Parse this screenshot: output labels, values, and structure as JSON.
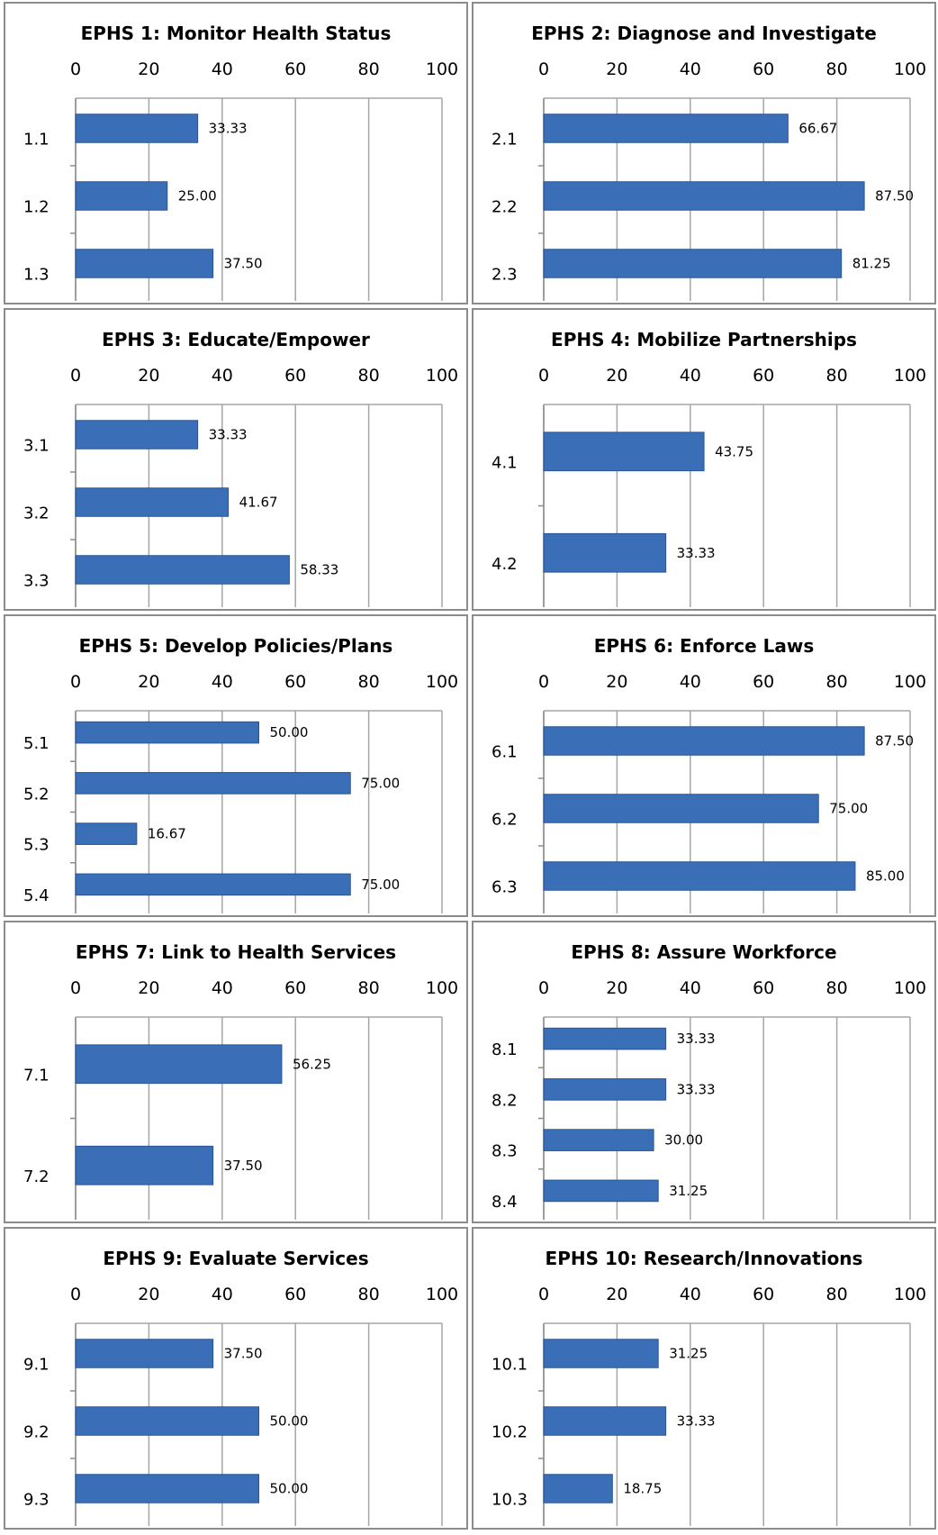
{
  "chart_data": [
    {
      "type": "bar",
      "title": "EPHS 1: Monitor Health Status",
      "categories": [
        "1.1",
        "1.2",
        "1.3"
      ],
      "values": [
        33.33,
        25.0,
        37.5
      ],
      "labels": [
        "33.33",
        "25.00",
        "37.50"
      ],
      "xlim": [
        0,
        100
      ],
      "ticks": [
        "0",
        "20",
        "40",
        "60",
        "80",
        "100"
      ],
      "grid": true,
      "bar_color": "#3a6fb8"
    },
    {
      "type": "bar",
      "title": "EPHS 2: Diagnose and Investigate",
      "categories": [
        "2.1",
        "2.2",
        "2.3"
      ],
      "values": [
        66.67,
        87.5,
        81.25
      ],
      "labels": [
        "66.67",
        "87.50",
        "81.25"
      ],
      "xlim": [
        0,
        100
      ],
      "ticks": [
        "0",
        "20",
        "40",
        "60",
        "80",
        "100"
      ],
      "grid": true,
      "bar_color": "#3a6fb8"
    },
    {
      "type": "bar",
      "title": "EPHS 3: Educate/Empower",
      "categories": [
        "3.1",
        "3.2",
        "3.3"
      ],
      "values": [
        33.33,
        41.67,
        58.33
      ],
      "labels": [
        "33.33",
        "41.67",
        "58.33"
      ],
      "xlim": [
        0,
        100
      ],
      "ticks": [
        "0",
        "20",
        "40",
        "60",
        "80",
        "100"
      ],
      "grid": true,
      "bar_color": "#3a6fb8"
    },
    {
      "type": "bar",
      "title": "EPHS 4: Mobilize Partnerships",
      "categories": [
        "4.1",
        "4.2"
      ],
      "values": [
        43.75,
        33.33
      ],
      "labels": [
        "43.75",
        "33.33"
      ],
      "xlim": [
        0,
        100
      ],
      "ticks": [
        "0",
        "20",
        "40",
        "60",
        "80",
        "100"
      ],
      "grid": true,
      "bar_color": "#3a6fb8"
    },
    {
      "type": "bar",
      "title": "EPHS 5: Develop Policies/Plans",
      "categories": [
        "5.1",
        "5.2",
        "5.3",
        "5.4"
      ],
      "values": [
        50.0,
        75.0,
        16.67,
        75.0
      ],
      "labels": [
        "50.00",
        "75.00",
        "16.67",
        "75.00"
      ],
      "xlim": [
        0,
        100
      ],
      "ticks": [
        "0",
        "20",
        "40",
        "60",
        "80",
        "100"
      ],
      "grid": true,
      "bar_color": "#3a6fb8"
    },
    {
      "type": "bar",
      "title": "EPHS 6: Enforce Laws",
      "categories": [
        "6.1",
        "6.2",
        "6.3"
      ],
      "values": [
        87.5,
        75.0,
        85.0
      ],
      "labels": [
        "87.50",
        "75.00",
        "85.00"
      ],
      "xlim": [
        0,
        100
      ],
      "ticks": [
        "0",
        "20",
        "40",
        "60",
        "80",
        "100"
      ],
      "grid": true,
      "bar_color": "#3a6fb8"
    },
    {
      "type": "bar",
      "title": "EPHS 7: Link to Health Services",
      "categories": [
        "7.1",
        "7.2"
      ],
      "values": [
        56.25,
        37.5
      ],
      "labels": [
        "56.25",
        "37.50"
      ],
      "xlim": [
        0,
        100
      ],
      "ticks": [
        "0",
        "20",
        "40",
        "60",
        "80",
        "100"
      ],
      "grid": true,
      "bar_color": "#3a6fb8"
    },
    {
      "type": "bar",
      "title": "EPHS 8: Assure Workforce",
      "categories": [
        "8.1",
        "8.2",
        "8.3",
        "8.4"
      ],
      "values": [
        33.33,
        33.33,
        30.0,
        31.25
      ],
      "labels": [
        "33.33",
        "33.33",
        "30.00",
        "31.25"
      ],
      "xlim": [
        0,
        100
      ],
      "ticks": [
        "0",
        "20",
        "40",
        "60",
        "80",
        "100"
      ],
      "grid": true,
      "bar_color": "#3a6fb8"
    },
    {
      "type": "bar",
      "title": "EPHS 9: Evaluate Services",
      "categories": [
        "9.1",
        "9.2",
        "9.3"
      ],
      "values": [
        37.5,
        50.0,
        50.0
      ],
      "labels": [
        "37.50",
        "50.00",
        "50.00"
      ],
      "xlim": [
        0,
        100
      ],
      "ticks": [
        "0",
        "20",
        "40",
        "60",
        "80",
        "100"
      ],
      "grid": true,
      "bar_color": "#3a6fb8"
    },
    {
      "type": "bar",
      "title": "EPHS 10: Research/Innovations",
      "categories": [
        "10.1",
        "10.2",
        "10.3"
      ],
      "values": [
        31.25,
        33.33,
        18.75
      ],
      "labels": [
        "31.25",
        "33.33",
        "18.75"
      ],
      "xlim": [
        0,
        100
      ],
      "ticks": [
        "0",
        "20",
        "40",
        "60",
        "80",
        "100"
      ],
      "grid": true,
      "bar_color": "#3a6fb8"
    }
  ]
}
